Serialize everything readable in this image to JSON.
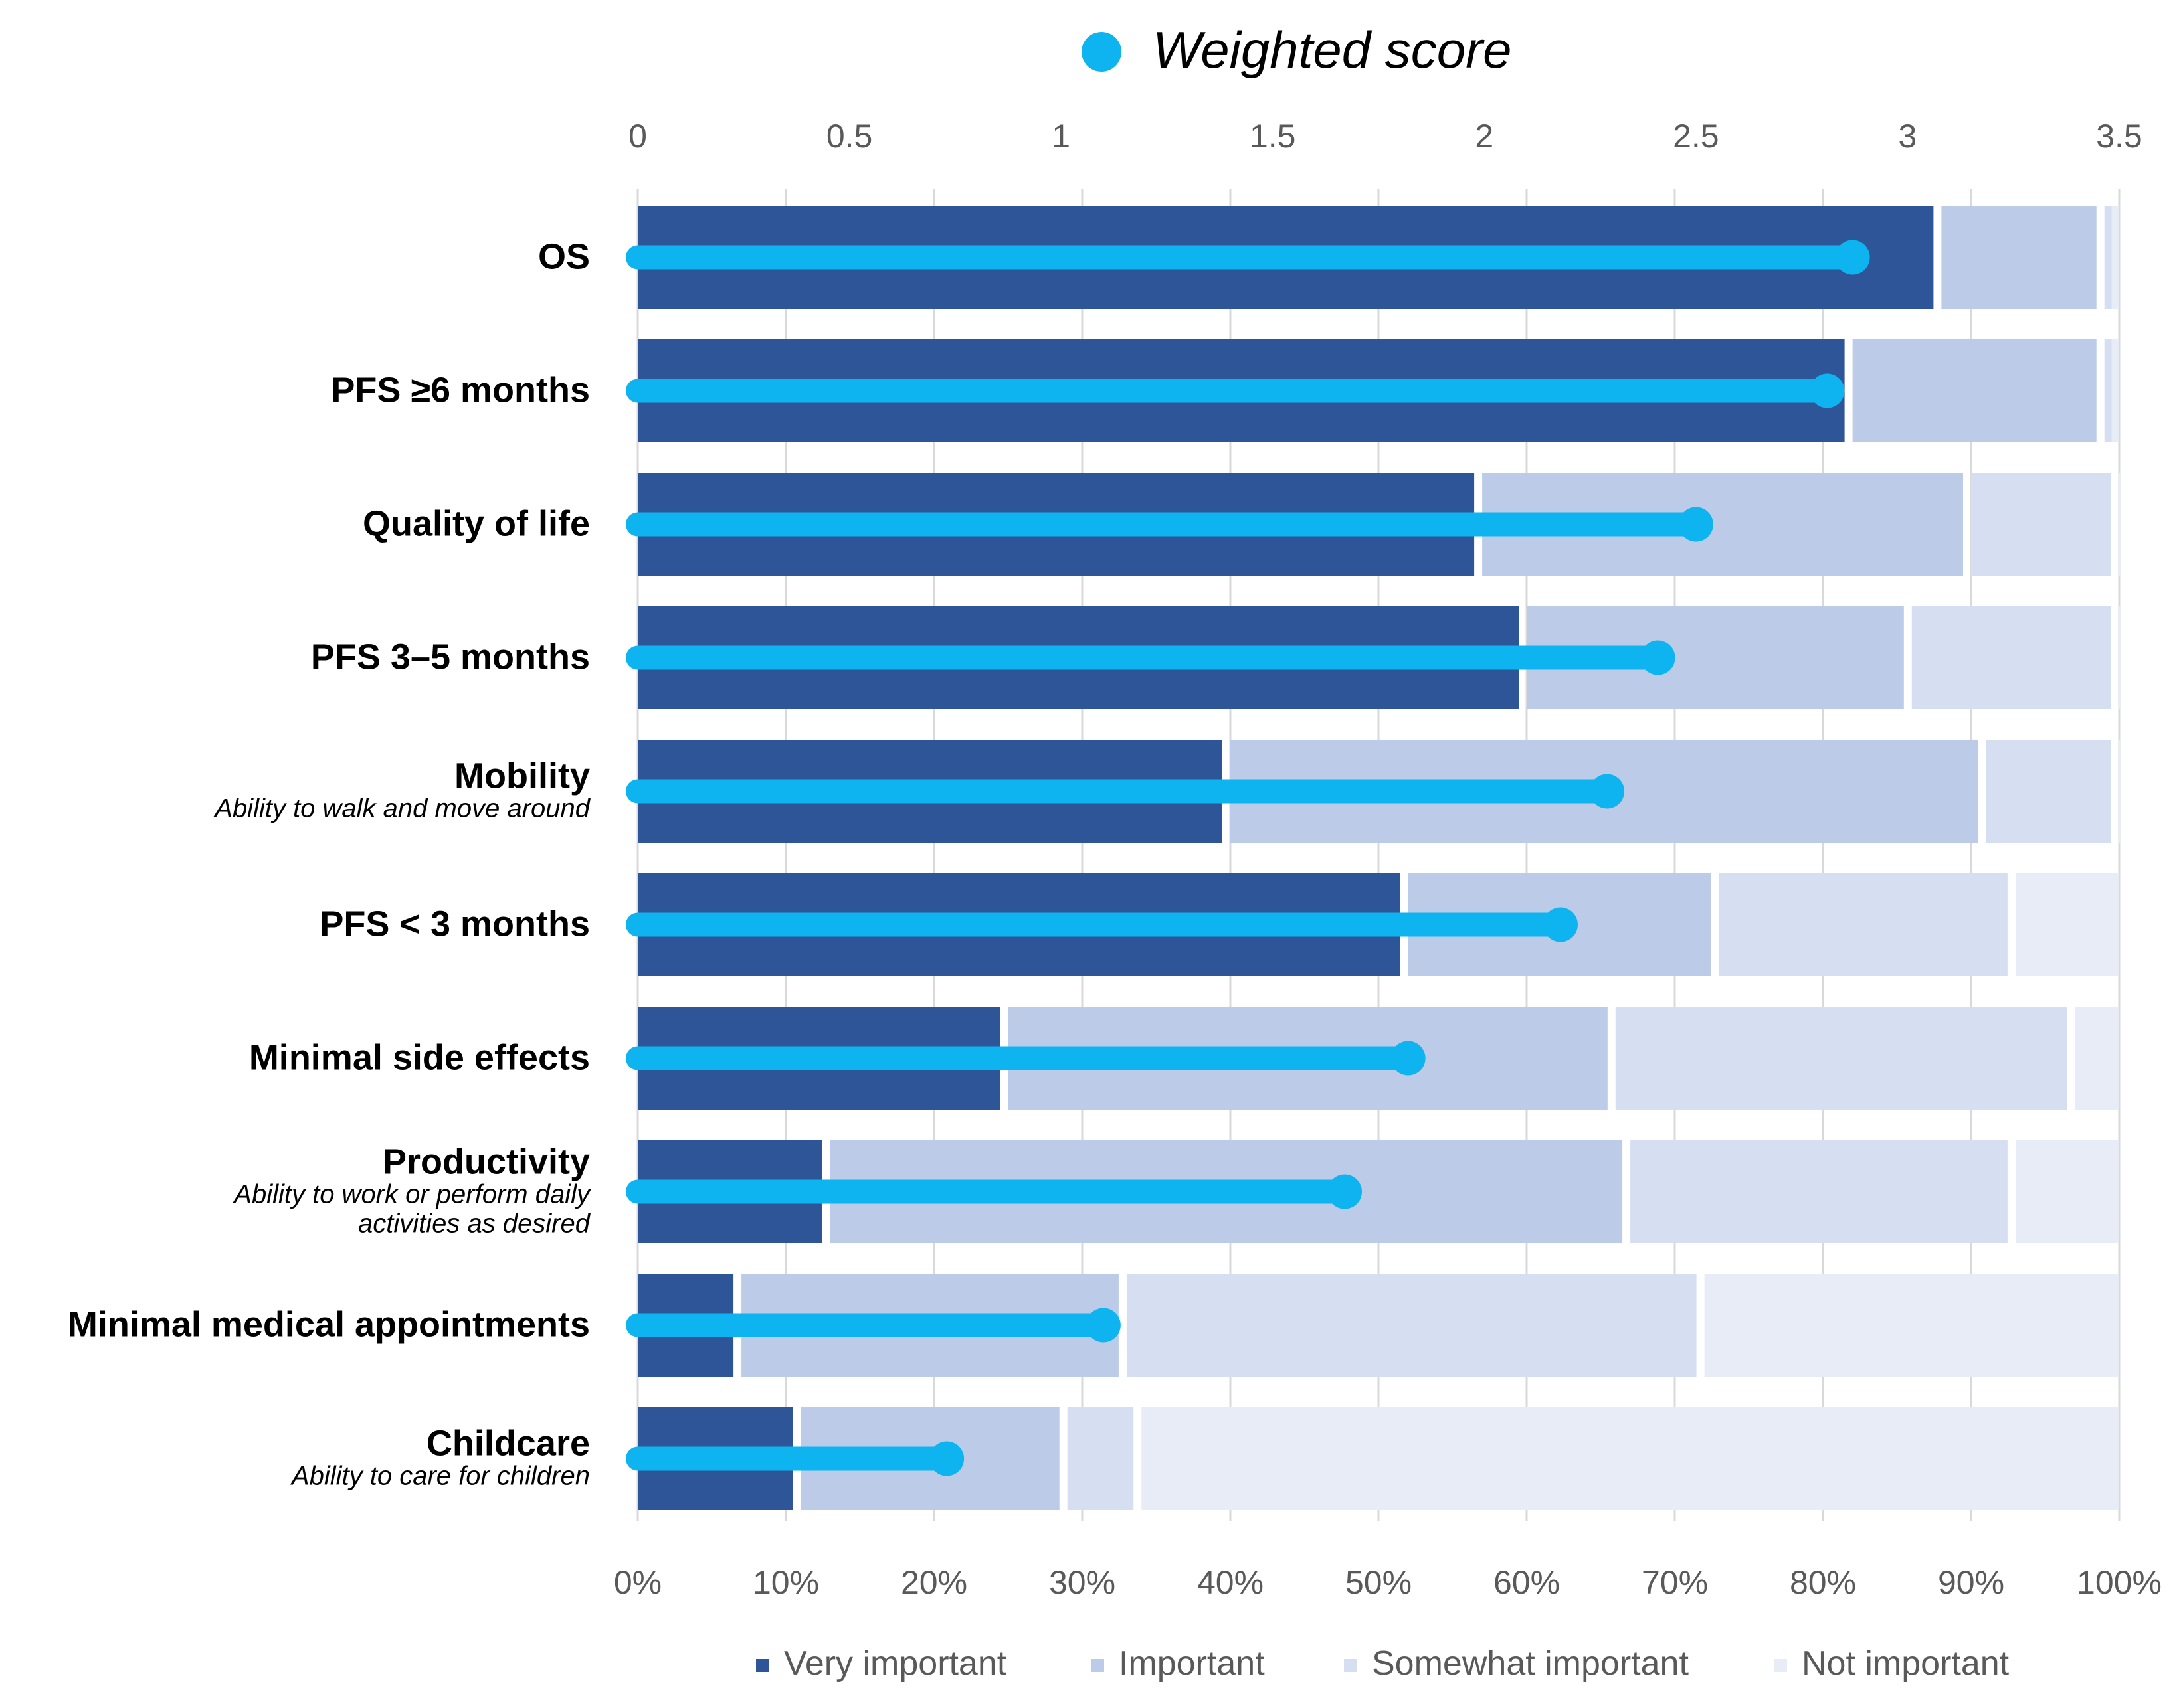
{
  "chart_data": {
    "type": "bar",
    "orientation": "horizontal-stacked-with-lollipop",
    "title": "",
    "categories": [
      {
        "label": "OS",
        "sublabel": []
      },
      {
        "label": "PFS ≥6 months",
        "sublabel": []
      },
      {
        "label": "Quality of life",
        "sublabel": []
      },
      {
        "label": "PFS 3–5 months",
        "sublabel": []
      },
      {
        "label": "Mobility",
        "sublabel": [
          "Ability to walk and move around"
        ]
      },
      {
        "label": "PFS < 3 months",
        "sublabel": []
      },
      {
        "label": "Minimal side effects",
        "sublabel": []
      },
      {
        "label": "Productivity",
        "sublabel": [
          "Ability to work or perform daily",
          "activities as desired"
        ]
      },
      {
        "label": "Minimal medical appointments",
        "sublabel": []
      },
      {
        "label": "Childcare",
        "sublabel": [
          "Ability to care for children"
        ]
      }
    ],
    "series": [
      {
        "name": "Very important",
        "color": "#2e5597",
        "values": [
          88,
          82,
          57,
          60,
          40,
          52,
          25,
          13,
          7,
          11
        ]
      },
      {
        "name": "Important",
        "color": "#bccbe8",
        "values": [
          11,
          17,
          33,
          26,
          51,
          21,
          41,
          54,
          26,
          18
        ]
      },
      {
        "name": "Somewhat important",
        "color": "#d6dff2",
        "values": [
          0.5,
          0.5,
          10,
          14,
          9,
          20,
          31,
          26,
          39,
          5
        ]
      },
      {
        "name": "Not important",
        "color": "#e8ecf7",
        "values": [
          0.5,
          0.5,
          0,
          0,
          0,
          7,
          3,
          7,
          28,
          66
        ]
      }
    ],
    "weighted_score": {
      "name": "Weighted score",
      "color": "#0db4f0",
      "values": [
        2.87,
        2.81,
        2.5,
        2.41,
        2.29,
        2.18,
        1.82,
        1.67,
        1.1,
        0.73
      ]
    },
    "bottom_axis": {
      "ticks": [
        "0%",
        "10%",
        "20%",
        "30%",
        "40%",
        "50%",
        "60%",
        "70%",
        "80%",
        "90%",
        "100%"
      ],
      "range": [
        0,
        100
      ]
    },
    "top_axis": {
      "ticks": [
        "0",
        "0.5",
        "1",
        "1.5",
        "2",
        "2.5",
        "3",
        "3.5"
      ],
      "range": [
        0,
        3.5
      ]
    },
    "grid": true,
    "legend_position": "bottom",
    "score_legend_position": "top"
  }
}
